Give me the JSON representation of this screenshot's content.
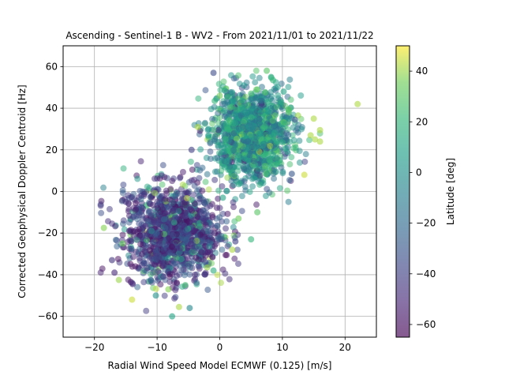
{
  "chart_data": {
    "type": "scatter",
    "title": "Ascending - Sentinel-1 B - WV2 - From 2021/11/01 to 2021/11/22",
    "xlabel": "Radial Wind Speed Model ECMWF (0.125) [m/s]",
    "ylabel": "Corrected Geophysical Doppler Centroid [Hz]",
    "xlim": [
      -25,
      25
    ],
    "ylim": [
      -70,
      70
    ],
    "xticks": [
      -20,
      -10,
      0,
      10,
      20
    ],
    "yticks": [
      -60,
      -40,
      -20,
      0,
      20,
      40,
      60
    ],
    "grid": true,
    "colorbar": {
      "label": "Latitude [deg]",
      "range": [
        -65,
        50
      ],
      "ticks": [
        -60,
        -40,
        -20,
        0,
        20,
        40
      ],
      "colormap": "viridis"
    },
    "points": [
      {
        "x": -18.5,
        "y": -17.5,
        "c": 38
      },
      {
        "x": -17.2,
        "y": -33,
        "c": -45
      },
      {
        "x": -16.8,
        "y": -39,
        "c": -50
      },
      {
        "x": -16.1,
        "y": -42.5,
        "c": 40
      },
      {
        "x": -15.0,
        "y": -5,
        "c": -45
      },
      {
        "x": -14.2,
        "y": -43.5,
        "c": -55
      },
      {
        "x": -13.9,
        "y": -44.5,
        "c": -50
      },
      {
        "x": -14.0,
        "y": -52,
        "c": 45
      },
      {
        "x": -15.5,
        "y": -25,
        "c": 35
      },
      {
        "x": -12.5,
        "y": -2,
        "c": -40
      },
      {
        "x": -10.2,
        "y": -50,
        "c": 0
      },
      {
        "x": -11.0,
        "y": -42.5,
        "c": -20
      },
      {
        "x": -6.5,
        "y": -55.5,
        "c": 42
      },
      {
        "x": -4.8,
        "y": -56,
        "c": -5
      },
      {
        "x": -7.6,
        "y": -60,
        "c": 10
      },
      {
        "x": -5.5,
        "y": -45,
        "c": 25
      },
      {
        "x": -1.0,
        "y": 57,
        "c": -35
      },
      {
        "x": 7.5,
        "y": 58,
        "c": 30
      },
      {
        "x": 8.2,
        "y": 55,
        "c": 15
      },
      {
        "x": 8.5,
        "y": 53.5,
        "c": 20
      },
      {
        "x": 0.8,
        "y": 48.5,
        "c": 10
      },
      {
        "x": 0.0,
        "y": 46,
        "c": 35
      },
      {
        "x": 10.2,
        "y": 48,
        "c": 10
      },
      {
        "x": 22.0,
        "y": 42,
        "c": 42
      },
      {
        "x": 15.0,
        "y": 35,
        "c": 42
      },
      {
        "x": 16.0,
        "y": 29.5,
        "c": 42
      },
      {
        "x": 14.5,
        "y": 27,
        "c": 42
      },
      {
        "x": 15.2,
        "y": 25,
        "c": 42
      },
      {
        "x": 16.0,
        "y": 24,
        "c": 42
      },
      {
        "x": 13.5,
        "y": 8,
        "c": 45
      },
      {
        "x": 11.5,
        "y": 8.5,
        "c": -30
      },
      {
        "x": 12.5,
        "y": 36.5,
        "c": 40
      },
      {
        "x": 12.0,
        "y": 34.5,
        "c": -30
      },
      {
        "x": 11.0,
        "y": 38,
        "c": 30
      },
      {
        "x": 9.8,
        "y": 43,
        "c": 15
      },
      {
        "x": 5.0,
        "y": 47,
        "c": 25
      },
      {
        "x": 6.0,
        "y": 49,
        "c": 30
      },
      {
        "x": -3.5,
        "y": 31,
        "c": 42
      },
      {
        "x": -4.5,
        "y": 20,
        "c": -40
      },
      {
        "x": -1.8,
        "y": 30,
        "c": 5
      },
      {
        "x": -0.8,
        "y": 43.5,
        "c": 20
      },
      {
        "x": 2.0,
        "y": -28,
        "c": 42
      },
      {
        "x": 2.5,
        "y": -24,
        "c": -40
      },
      {
        "x": 5.0,
        "y": -23,
        "c": 20
      },
      {
        "x": 3.0,
        "y": -13,
        "c": 35
      },
      {
        "x": 6.0,
        "y": -10,
        "c": 30
      },
      {
        "x": 0.5,
        "y": -3,
        "c": 10
      },
      {
        "x": -2.0,
        "y": -36.5,
        "c": 40
      },
      {
        "x": -1.0,
        "y": -38,
        "c": 15
      },
      {
        "x": -9.0,
        "y": -41,
        "c": -40
      },
      {
        "x": -8.2,
        "y": -47,
        "c": 38
      }
    ]
  }
}
